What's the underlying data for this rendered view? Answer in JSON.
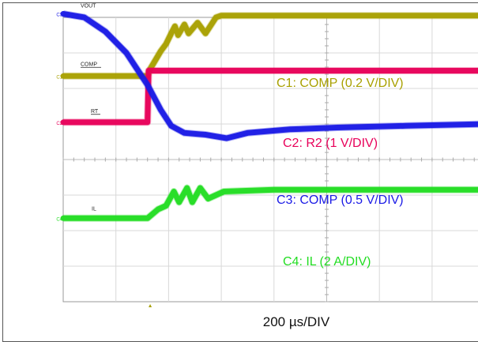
{
  "chart_data": {
    "type": "line",
    "xlabel": "200 µs/DIV",
    "x_divisions": 10,
    "y_divisions": 8,
    "grid": true,
    "series": [
      {
        "name": "C1: COMP (0.2 V/DIV)",
        "marker": "C1",
        "trace_label": "COMP",
        "color": "#a8a000",
        "points": [
          [
            0,
            6.35
          ],
          [
            1.6,
            6.35
          ],
          [
            1.65,
            6.55
          ],
          [
            1.85,
            7.05
          ],
          [
            1.95,
            7.25
          ],
          [
            2.05,
            7.55
          ],
          [
            2.12,
            7.75
          ],
          [
            2.18,
            7.5
          ],
          [
            2.3,
            7.8
          ],
          [
            2.38,
            7.55
          ],
          [
            2.55,
            7.85
          ],
          [
            2.7,
            7.55
          ],
          [
            2.9,
            8.0
          ],
          [
            3.0,
            8.05
          ],
          [
            10,
            8.05
          ]
        ]
      },
      {
        "name": "C2: R2 (1 V/DIV)",
        "marker": "C2",
        "trace_label": "RT",
        "color": "#e8005a",
        "points": [
          [
            0,
            5.05
          ],
          [
            1.6,
            5.05
          ],
          [
            1.62,
            6.5
          ],
          [
            10,
            6.5
          ]
        ]
      },
      {
        "name": "C3: COMP (0.5 V/DIV)",
        "marker": "C3",
        "trace_label": "VOUT",
        "color": "#1a1ae6",
        "points": [
          [
            0,
            8.1
          ],
          [
            0.4,
            8.0
          ],
          [
            0.8,
            7.6
          ],
          [
            1.2,
            7.0
          ],
          [
            1.6,
            6.1
          ],
          [
            1.85,
            5.4
          ],
          [
            2.05,
            4.95
          ],
          [
            2.3,
            4.75
          ],
          [
            2.7,
            4.7
          ],
          [
            3.1,
            4.6
          ],
          [
            3.5,
            4.75
          ],
          [
            4.3,
            4.85
          ],
          [
            5.2,
            4.9
          ],
          [
            6.5,
            4.95
          ],
          [
            8.0,
            5.0
          ],
          [
            10,
            5.05
          ]
        ]
      },
      {
        "name": "C4: IL (2 A/DIV)",
        "marker": "C4",
        "trace_label": "IL",
        "color": "#22dd22",
        "points": [
          [
            0,
            2.35
          ],
          [
            1.6,
            2.35
          ],
          [
            1.8,
            2.6
          ],
          [
            1.95,
            2.7
          ],
          [
            2.1,
            3.1
          ],
          [
            2.2,
            2.8
          ],
          [
            2.35,
            3.2
          ],
          [
            2.45,
            2.8
          ],
          [
            2.6,
            3.2
          ],
          [
            2.75,
            2.9
          ],
          [
            3.05,
            3.1
          ],
          [
            4,
            3.15
          ],
          [
            10,
            3.15
          ]
        ]
      }
    ]
  }
}
